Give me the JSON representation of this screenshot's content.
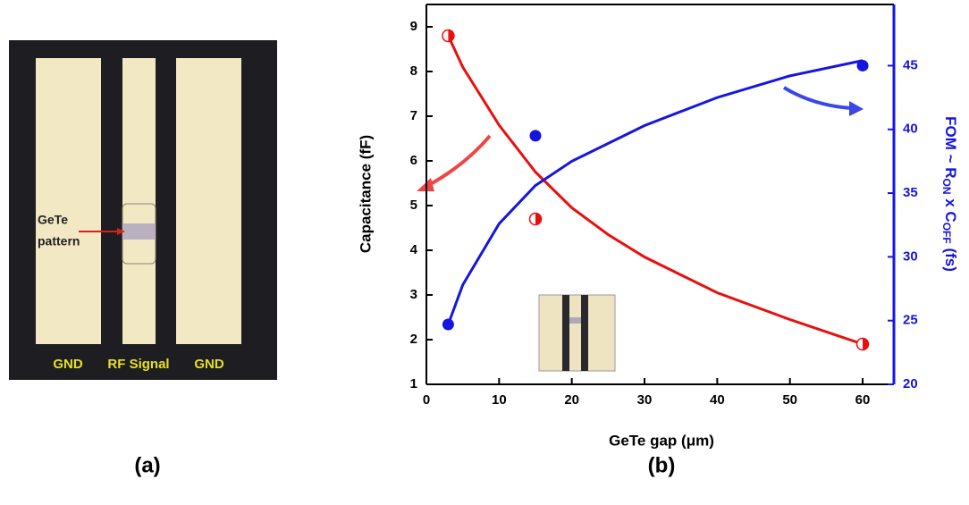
{
  "panel_a": {
    "label": "(a)",
    "annotation": [
      "GeTe",
      "pattern"
    ],
    "pads": [
      "GND",
      "RF Signal",
      "GND"
    ]
  },
  "chart_data": {
    "type": "scatter",
    "panel_label": "(b)",
    "x_label": "GeTe gap (μm)",
    "y_label": "Capacitance (fF)",
    "y2_label": [
      "FOM ~ R",
      "ON",
      " x C",
      "OFF",
      " (fs)"
    ],
    "xlim": [
      0,
      64.3
    ],
    "xticks": [
      0,
      10,
      20,
      30,
      40,
      50,
      60
    ],
    "ylim": [
      1,
      9.5
    ],
    "yticks": [
      1,
      2,
      3,
      4,
      5,
      6,
      7,
      8,
      9
    ],
    "y2lim": [
      20,
      49.8
    ],
    "y2ticks": [
      20,
      25,
      30,
      35,
      40,
      45
    ],
    "series": [
      {
        "color": "#e8100f",
        "marker": "half",
        "x": [
          3,
          15,
          60
        ],
        "values": [
          8.8,
          4.7,
          1.9
        ]
      },
      {
        "color": "#1515e0",
        "marker": "filled",
        "axis": "y2",
        "x": [
          3,
          15,
          60
        ],
        "values": [
          24.7,
          39.5,
          45
        ]
      },
      {
        "color": "#e8100f",
        "marker": "none",
        "line": true,
        "x": [
          3,
          5,
          10,
          15,
          20,
          25,
          30,
          40,
          50,
          60
        ],
        "values": [
          8.8,
          8.1,
          6.8,
          5.75,
          4.95,
          4.35,
          3.85,
          3.05,
          2.45,
          1.9
        ]
      },
      {
        "color": "#1515e0",
        "marker": "none",
        "line": true,
        "axis": "y2",
        "x": [
          3,
          5,
          10,
          15,
          20,
          30,
          40,
          50,
          60
        ],
        "values": [
          24.7,
          27.8,
          32.6,
          35.6,
          37.5,
          40.3,
          42.5,
          44.2,
          45.4
        ]
      }
    ]
  }
}
